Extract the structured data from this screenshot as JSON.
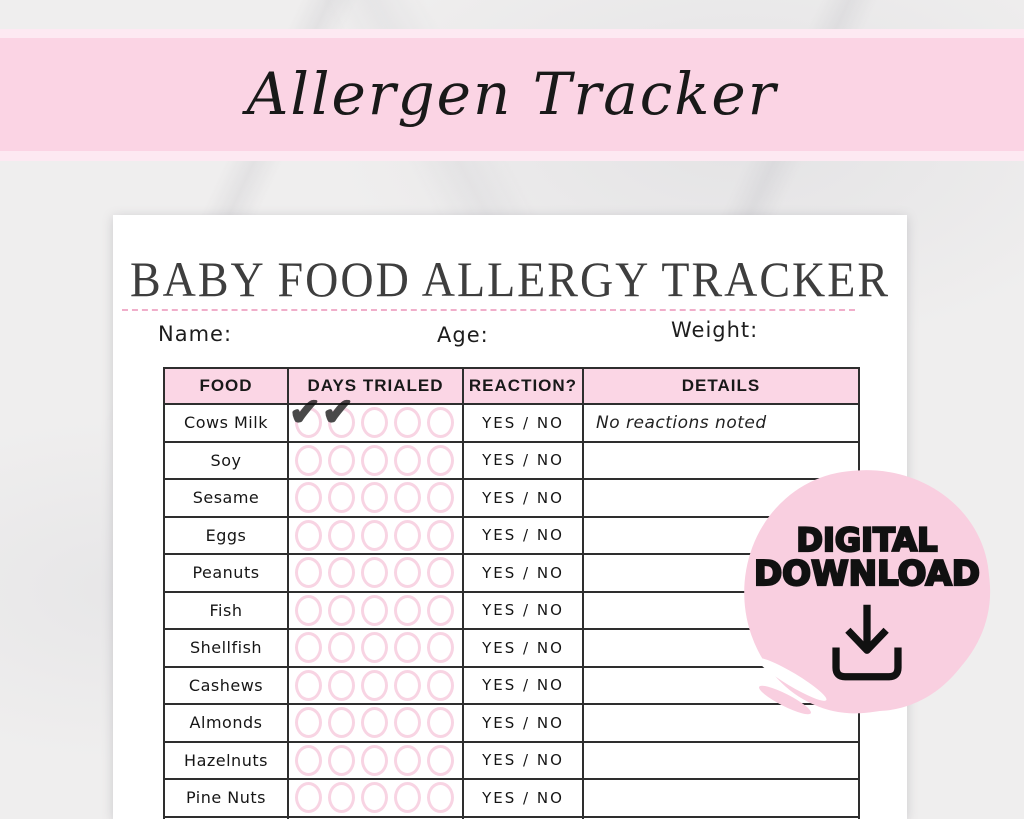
{
  "banner": {
    "title": "Allergen Tracker"
  },
  "page": {
    "title": "BABY FOOD ALLERGY TRACKER",
    "fields": [
      {
        "label": "Name:"
      },
      {
        "label": "Age:"
      },
      {
        "label": "Weight:"
      }
    ],
    "table": {
      "headers": [
        "FOOD",
        "DAYS TRIALED",
        "REACTION?",
        "DETAILS"
      ],
      "circles_per_row": 5,
      "reaction_label": "YES / NO",
      "check_glyph": "✔",
      "rows": [
        {
          "food": "Cows Milk",
          "days_checked": 2,
          "details": "No reactions noted"
        },
        {
          "food": "Soy",
          "days_checked": 0,
          "details": ""
        },
        {
          "food": "Sesame",
          "days_checked": 0,
          "details": ""
        },
        {
          "food": "Eggs",
          "days_checked": 0,
          "details": ""
        },
        {
          "food": "Peanuts",
          "days_checked": 0,
          "details": ""
        },
        {
          "food": "Fish",
          "days_checked": 0,
          "details": ""
        },
        {
          "food": "Shellfish",
          "days_checked": 0,
          "details": ""
        },
        {
          "food": "Cashews",
          "days_checked": 0,
          "details": ""
        },
        {
          "food": "Almonds",
          "days_checked": 0,
          "details": ""
        },
        {
          "food": "Hazelnuts",
          "days_checked": 0,
          "details": ""
        },
        {
          "food": "Pine Nuts",
          "days_checked": 0,
          "details": ""
        }
      ]
    }
  },
  "badge": {
    "line1": "DIGITAL",
    "line2": "DOWNLOAD",
    "icon": "download-arrow-icon"
  },
  "colors": {
    "banner_pink": "#fbd4e4",
    "banner_stripe": "#fde9f2",
    "header_pink": "#fbd6e5",
    "circle_pink": "#f5c6da",
    "badge_pink": "#f9cfe0",
    "border_dark": "#2e2e2e",
    "dash_pink": "#f0aeca"
  }
}
